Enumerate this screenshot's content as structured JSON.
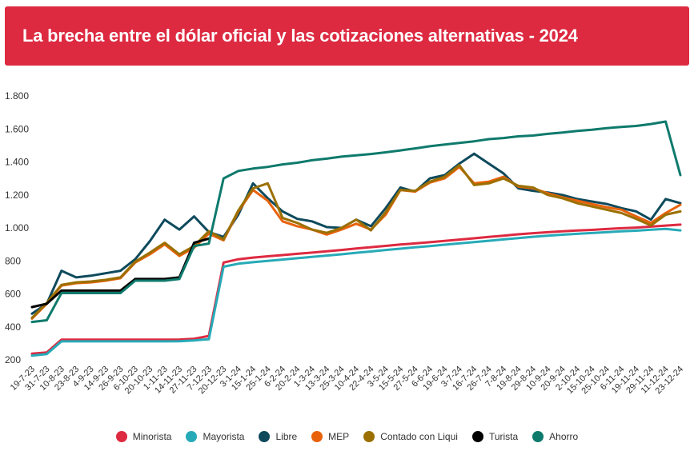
{
  "header": {
    "title": "La brecha entre el dólar oficial y las cotizaciones alternativas - 2024"
  },
  "colors": {
    "banner": "#dd2a41",
    "Minorista": "#dd2a41",
    "Mayorista": "#27aab8",
    "Libre": "#0e4a5c",
    "MEP": "#e8620c",
    "Contado con Liqui": "#9b7000",
    "Turista": "#000000",
    "Ahorro": "#0e7a6c"
  },
  "chart_data": {
    "type": "line",
    "title": "La brecha entre el dólar oficial y las cotizaciones alternativas - 2024",
    "xlabel": "",
    "ylabel": "",
    "ylim": [
      200,
      1800
    ],
    "yticks": [
      200,
      400,
      600,
      800,
      1000,
      1200,
      1400,
      1600,
      1800
    ],
    "ytick_labels": [
      "200",
      "400",
      "600",
      "800",
      "1.000",
      "1.200",
      "1.400",
      "1.600",
      "1.800"
    ],
    "grid": false,
    "legend_position": "bottom",
    "x": [
      "19-7-23",
      "31-7-23",
      "10-8-23",
      "23-8-23",
      "4-9-23",
      "14-9-23",
      "26-9-23",
      "6-10-23",
      "20-10-23",
      "1-11-23",
      "14-11-23",
      "27-11-23",
      "7-12-23",
      "20-12-23",
      "3-1-24",
      "15-1-24",
      "25-1-24",
      "6-2-24",
      "20-2-24",
      "1-3-24",
      "13-3-24",
      "25-3-24",
      "10-4-24",
      "22-4-24",
      "3-5-24",
      "15-5-24",
      "27-5-24",
      "6-6-24",
      "19-6-24",
      "3-7-24",
      "16-7-24",
      "26-7-24",
      "7-8-24",
      "19-8-24",
      "29-8-24",
      "10-9-24",
      "20-9-24",
      "2-10-24",
      "15-10-24",
      "25-10-24",
      "6-11-24",
      "19-11-24",
      "29-11-24",
      "11-12-24",
      "23-12-24"
    ],
    "series": [
      {
        "name": "Minorista",
        "values": [
          238,
          245,
          322,
          322,
          322,
          322,
          322,
          322,
          322,
          322,
          323,
          328,
          345,
          790,
          810,
          820,
          828,
          835,
          843,
          850,
          858,
          866,
          875,
          883,
          891,
          899,
          906,
          913,
          921,
          929,
          937,
          945,
          953,
          961,
          968,
          974,
          979,
          984,
          988,
          993,
          998,
          1002,
          1008,
          1014,
          1020
        ]
      },
      {
        "name": "Mayorista",
        "values": [
          225,
          235,
          312,
          312,
          312,
          312,
          312,
          312,
          312,
          312,
          313,
          318,
          325,
          765,
          783,
          792,
          800,
          808,
          816,
          824,
          832,
          840,
          849,
          857,
          866,
          874,
          882,
          890,
          898,
          906,
          914,
          922,
          930,
          938,
          946,
          953,
          959,
          964,
          969,
          974,
          979,
          983,
          989,
          994,
          985
        ]
      },
      {
        "name": "Libre",
        "values": [
          480,
          540,
          740,
          700,
          710,
          725,
          740,
          810,
          920,
          1050,
          990,
          1070,
          975,
          945,
          1080,
          1270,
          1180,
          1100,
          1055,
          1040,
          1005,
          1000,
          1050,
          1010,
          1120,
          1245,
          1220,
          1300,
          1320,
          1390,
          1450,
          1390,
          1330,
          1240,
          1225,
          1215,
          1200,
          1175,
          1160,
          1145,
          1120,
          1100,
          1050,
          1175,
          1150
        ]
      },
      {
        "name": "MEP",
        "values": [
          450,
          540,
          650,
          665,
          670,
          680,
          695,
          790,
          840,
          900,
          830,
          880,
          965,
          925,
          1100,
          1230,
          1165,
          1040,
          1010,
          990,
          960,
          990,
          1025,
          990,
          1080,
          1230,
          1220,
          1275,
          1300,
          1370,
          1270,
          1280,
          1310,
          1250,
          1240,
          1210,
          1185,
          1165,
          1145,
          1125,
          1110,
          1070,
          1030,
          1090,
          1140
        ]
      },
      {
        "name": "Contado con Liqui",
        "values": [
          455,
          545,
          655,
          670,
          675,
          685,
          700,
          795,
          850,
          910,
          840,
          890,
          980,
          930,
          1105,
          1240,
          1270,
          1060,
          1030,
          990,
          970,
          1000,
          1050,
          985,
          1095,
          1230,
          1225,
          1280,
          1310,
          1380,
          1260,
          1270,
          1300,
          1255,
          1245,
          1200,
          1180,
          1150,
          1130,
          1110,
          1090,
          1055,
          1015,
          1080,
          1100
        ]
      },
      {
        "name": "Turista",
        "values": [
          520,
          540,
          620,
          620,
          620,
          620,
          620,
          690,
          690,
          690,
          700,
          910,
          935,
          null,
          null,
          null,
          null,
          null,
          null,
          null,
          null,
          null,
          null,
          null,
          null,
          null,
          null,
          null,
          null,
          null,
          null,
          null,
          null,
          null,
          null,
          null,
          null,
          null,
          null,
          null,
          null,
          null,
          null,
          null,
          null
        ]
      },
      {
        "name": "Ahorro",
        "values": [
          430,
          440,
          605,
          605,
          605,
          605,
          605,
          680,
          680,
          680,
          690,
          890,
          905,
          1300,
          1345,
          1360,
          1370,
          1385,
          1395,
          1410,
          1420,
          1432,
          1440,
          1448,
          1458,
          1470,
          1482,
          1495,
          1505,
          1515,
          1525,
          1538,
          1545,
          1555,
          1560,
          1570,
          1578,
          1588,
          1595,
          1605,
          1612,
          1618,
          1630,
          1645,
          1320
        ]
      }
    ]
  }
}
